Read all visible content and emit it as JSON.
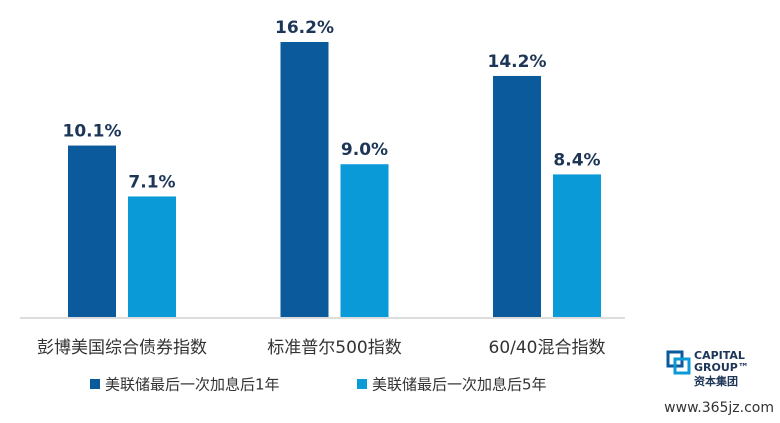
{
  "chart_data": {
    "type": "bar",
    "categories": [
      "彭博美国综合债券指数",
      "标准普尔500指数",
      "60/40混合指数"
    ],
    "series": [
      {
        "name": "美联储最后一次加息后1年",
        "color": "#0a5a9c",
        "values": [
          10.1,
          16.2,
          14.2
        ],
        "value_labels": [
          "10.1%",
          "16.2%",
          "14.2%"
        ]
      },
      {
        "name": "美联储最后一次加息后5年",
        "color": "#0b9ad8",
        "values": [
          7.1,
          9.0,
          8.4
        ],
        "value_labels": [
          "7.1%",
          "9.0%",
          "8.4%"
        ]
      }
    ],
    "ylim": [
      0,
      16.2
    ],
    "grid": false,
    "legend": "bottom"
  },
  "logo": {
    "line1": "CAPITAL",
    "line2": "GROUP™",
    "line3": "资本集团"
  },
  "watermark": "www.365jz.com"
}
